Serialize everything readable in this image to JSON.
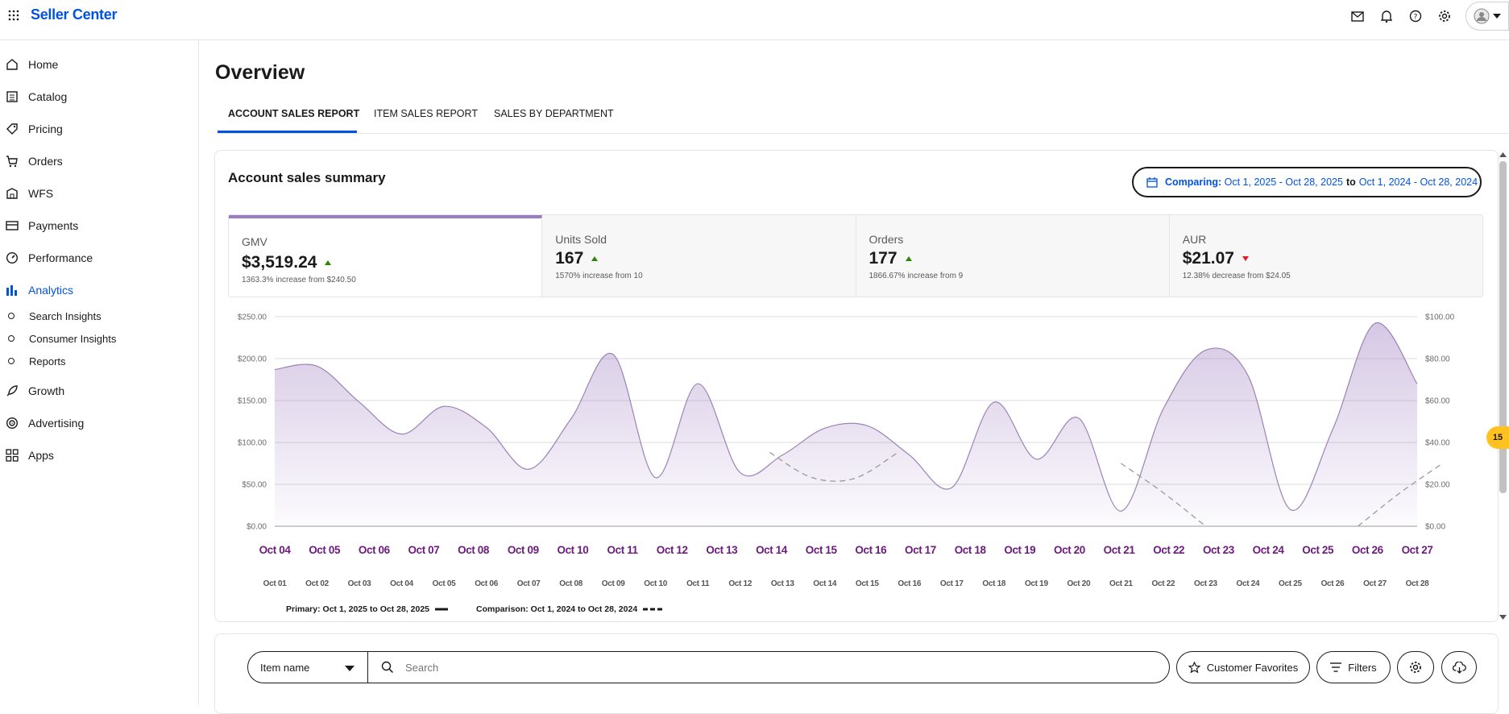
{
  "app": {
    "brand": "Seller Center"
  },
  "sidebar": {
    "items": [
      {
        "label": "Home",
        "icon": "home-icon"
      },
      {
        "label": "Catalog",
        "icon": "catalog-icon"
      },
      {
        "label": "Pricing",
        "icon": "tag-icon"
      },
      {
        "label": "Orders",
        "icon": "cart-icon"
      },
      {
        "label": "WFS",
        "icon": "warehouse-icon"
      },
      {
        "label": "Payments",
        "icon": "card-icon"
      },
      {
        "label": "Performance",
        "icon": "gauge-icon"
      },
      {
        "label": "Analytics",
        "icon": "bar-chart-icon",
        "active": true
      },
      {
        "label": "Growth",
        "icon": "rocket-icon"
      },
      {
        "label": "Advertising",
        "icon": "target-icon"
      },
      {
        "label": "Apps",
        "icon": "apps-icon"
      }
    ],
    "analytics_sub": [
      {
        "label": "Search Insights"
      },
      {
        "label": "Consumer Insights"
      },
      {
        "label": "Reports"
      }
    ]
  },
  "page": {
    "title": "Overview"
  },
  "tabs": [
    {
      "label": "ACCOUNT SALES REPORT",
      "active": true
    },
    {
      "label": "ITEM SALES REPORT"
    },
    {
      "label": "SALES BY DEPARTMENT"
    }
  ],
  "summary": {
    "title": "Account sales summary",
    "compare_label": "Comparing:",
    "compare_primary": "Oct 1, 2025 - Oct 28, 2025",
    "compare_to": "to",
    "compare_secondary": "Oct 1, 2024 - Oct 28, 2024"
  },
  "metrics": [
    {
      "label": "GMV",
      "value": "$3,519.24",
      "trend": "up",
      "delta": "1363.3% increase from $240.50",
      "selected": true
    },
    {
      "label": "Units Sold",
      "value": "167",
      "trend": "up",
      "delta": "1570% increase from 10"
    },
    {
      "label": "Orders",
      "value": "177",
      "trend": "up",
      "delta": "1866.67% increase from 9"
    },
    {
      "label": "AUR",
      "value": "$21.07",
      "trend": "down",
      "delta": "12.38% decrease from $24.05"
    }
  ],
  "colors": {
    "accent": "#0053e2",
    "primary_series": "#9c7bc0",
    "up": "#2a8703",
    "down": "#de1c24",
    "date_purple": "#6d1a7e"
  },
  "chart_data": {
    "type": "area",
    "y_left_ticks": [
      "$0.00",
      "$50.00",
      "$100.00",
      "$150.00",
      "$200.00",
      "$250.00"
    ],
    "y_right_ticks": [
      "$0.00",
      "$20.00",
      "$40.00",
      "$60.00",
      "$80.00",
      "$100.00"
    ],
    "ylim": [
      0,
      250
    ],
    "primary_dates": [
      "Oct 04",
      "Oct 05",
      "Oct 06",
      "Oct 07",
      "Oct 08",
      "Oct 09",
      "Oct 10",
      "Oct 11",
      "Oct 12",
      "Oct 13",
      "Oct 14",
      "Oct 15",
      "Oct 16",
      "Oct 17",
      "Oct 18",
      "Oct 19",
      "Oct 20",
      "Oct 21",
      "Oct 22",
      "Oct 23",
      "Oct 24",
      "Oct 25",
      "Oct 26",
      "Oct 27"
    ],
    "comparison_dates": [
      "Oct 01",
      "Oct 02",
      "Oct 03",
      "Oct 04",
      "Oct 05",
      "Oct 06",
      "Oct 07",
      "Oct 08",
      "Oct 09",
      "Oct 10",
      "Oct 11",
      "Oct 12",
      "Oct 13",
      "Oct 14",
      "Oct 15",
      "Oct 16",
      "Oct 17",
      "Oct 18",
      "Oct 19",
      "Oct 20",
      "Oct 21",
      "Oct 22",
      "Oct 23",
      "Oct 24",
      "Oct 25",
      "Oct 26",
      "Oct 27",
      "Oct 28"
    ],
    "series": [
      {
        "name": "Primary: Oct 1, 2025 to Oct 28, 2025",
        "style": "solid",
        "values": [
          187,
          191,
          148,
          110,
          143,
          118,
          68,
          128,
          205,
          58,
          170,
          64,
          85,
          117,
          120,
          85,
          46,
          148,
          80,
          129,
          18,
          140,
          210,
          180,
          20,
          115,
          242,
          170
        ]
      },
      {
        "name": "Comparison: Oct 1, 2024 to Oct 28, 2024",
        "style": "dashed",
        "segments": [
          {
            "start": 11.7,
            "values": [
              88,
              58,
              57,
              87
            ]
          },
          {
            "start": 20,
            "values": [
              75,
              40,
              0
            ]
          },
          {
            "start": 25.6,
            "values": [
              0,
              40,
              75
            ]
          }
        ]
      }
    ],
    "legend_primary": "Primary: Oct 1, 2025 to Oct 28, 2025",
    "legend_comparison": "Comparison: Oct 1, 2024 to Oct 28, 2024"
  },
  "table_controls": {
    "select_value": "Item name",
    "search_placeholder": "Search",
    "favorites_label": "Customer Favorites",
    "filters_label": "Filters"
  },
  "notification_badge": "15"
}
